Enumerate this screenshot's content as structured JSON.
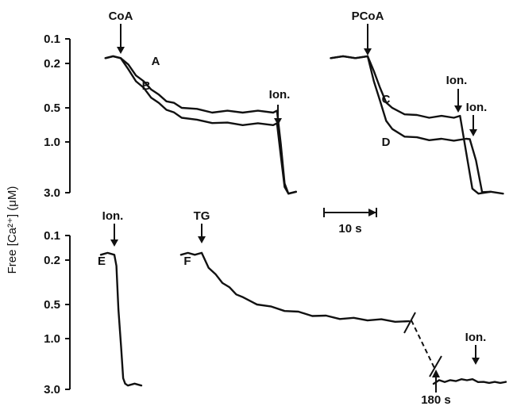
{
  "chart_data": {
    "type": "line",
    "ylabel": "Free [Ca²⁺] (μM)",
    "y_scale": "log",
    "y_inverted": true,
    "scale_bar": "10 s",
    "panels": [
      {
        "id": "top",
        "ylim": [
          0.1,
          3.0
        ],
        "ticks": [
          "0.1",
          "0.2",
          "0.5",
          "1.0",
          "3.0"
        ],
        "additions": [
          {
            "label": "CoA",
            "t": 0
          },
          {
            "label": "PCoA",
            "t": 0
          },
          {
            "label": "Ion.",
            "t": 20.5
          },
          {
            "label": "Ion.",
            "t": 7.5
          },
          {
            "label": "Ion.",
            "t": 8.3
          }
        ],
        "series": [
          {
            "name": "A",
            "x": [
              -2,
              -1,
              0,
              1,
              2,
              3,
              4,
              5,
              6,
              7,
              8,
              10,
              12,
              14,
              16,
              18,
              20,
              20.5,
              21,
              21.5,
              22,
              23
            ],
            "y": [
              0.15,
              0.15,
              0.15,
              0.18,
              0.22,
              0.26,
              0.3,
              0.35,
              0.39,
              0.42,
              0.45,
              0.48,
              0.5,
              0.5,
              0.5,
              0.5,
              0.5,
              0.5,
              1.0,
              2.5,
              3.0,
              3.0
            ]
          },
          {
            "name": "B",
            "x": [
              -2,
              -1,
              0,
              1,
              2,
              3,
              4,
              5,
              6,
              7,
              8,
              10,
              12,
              14,
              16,
              18,
              20,
              20.5,
              21,
              21.5,
              22,
              23
            ],
            "y": [
              0.15,
              0.15,
              0.15,
              0.2,
              0.25,
              0.3,
              0.36,
              0.42,
              0.47,
              0.52,
              0.56,
              0.61,
              0.63,
              0.65,
              0.66,
              0.66,
              0.66,
              0.66,
              1.3,
              2.7,
              3.0,
              3.0
            ]
          },
          {
            "name": "C",
            "x": [
              -3,
              -2,
              -1,
              0,
              0.5,
              1,
              1.5,
              2,
              3,
              4,
              5,
              6,
              7,
              7.5,
              8,
              8.5,
              9,
              10
            ],
            "y": [
              0.15,
              0.15,
              0.15,
              0.15,
              0.2,
              0.3,
              0.4,
              0.47,
              0.52,
              0.55,
              0.56,
              0.56,
              0.56,
              0.56,
              1.2,
              2.8,
              3.0,
              3.0
            ]
          },
          {
            "name": "D",
            "x": [
              -3,
              -2,
              -1,
              0,
              0.5,
              1,
              1.5,
              2,
              3,
              4,
              5,
              6,
              7,
              8,
              8.3,
              8.8,
              9.3,
              10,
              11
            ],
            "y": [
              0.15,
              0.15,
              0.15,
              0.15,
              0.25,
              0.4,
              0.6,
              0.75,
              0.85,
              0.9,
              0.92,
              0.93,
              0.93,
              0.93,
              0.9,
              1.5,
              2.9,
              3.0,
              3.0
            ]
          }
        ]
      },
      {
        "id": "bottom",
        "ylim": [
          0.1,
          3.0
        ],
        "ticks": [
          "0.1",
          "0.2",
          "0.5",
          "1.0",
          "3.0"
        ],
        "additions": [
          {
            "label": "Ion.",
            "t": 0
          },
          {
            "label": "TG",
            "t": 0
          },
          {
            "label": "Ion.",
            "t": 180
          }
        ],
        "time_break": "180 s",
        "series": [
          {
            "name": "E",
            "x": [
              -2,
              -1,
              0,
              0.3,
              0.6,
              1,
              1.3,
              1.6,
              2,
              3,
              4
            ],
            "y": [
              0.15,
              0.15,
              0.15,
              0.2,
              0.5,
              1.2,
              2.3,
              2.7,
              2.7,
              2.7,
              2.7
            ]
          },
          {
            "name": "F",
            "x": [
              -3,
              -2,
              -1,
              0,
              1,
              2,
              3,
              4,
              5,
              6,
              8,
              10,
              12,
              14,
              16,
              18,
              20,
              22,
              24,
              26,
              28,
              30
            ],
            "y": [
              0.15,
              0.15,
              0.15,
              0.15,
              0.2,
              0.24,
              0.28,
              0.32,
              0.36,
              0.4,
              0.45,
              0.49,
              0.52,
              0.55,
              0.58,
              0.6,
              0.62,
              0.63,
              0.64,
              0.65,
              0.66,
              0.68
            ]
          },
          {
            "name": "F (after 180 s)",
            "x": [
              180,
              181,
              182,
              183,
              184,
              185,
              186,
              187,
              188,
              189,
              190,
              191,
              192,
              193
            ],
            "y": [
              2.6,
              2.5,
              2.5,
              2.5,
              2.45,
              2.45,
              2.4,
              2.45,
              2.5,
              2.6,
              2.55,
              2.6,
              2.55,
              2.6
            ]
          }
        ]
      }
    ]
  }
}
